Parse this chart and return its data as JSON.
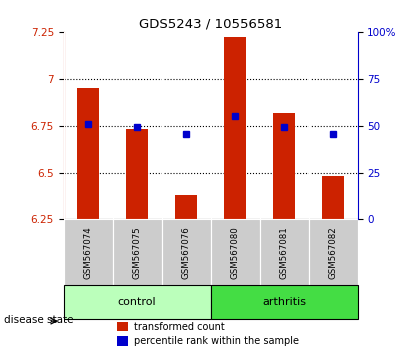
{
  "title": "GDS5243 / 10556581",
  "samples": [
    "GSM567074",
    "GSM567075",
    "GSM567076",
    "GSM567080",
    "GSM567081",
    "GSM567082"
  ],
  "bar_values": [
    6.95,
    6.73,
    6.38,
    7.22,
    6.82,
    6.48
  ],
  "bar_bottom": 6.25,
  "blue_values": [
    6.76,
    6.745,
    6.705,
    6.8,
    6.745,
    6.705
  ],
  "bar_color": "#cc2200",
  "blue_color": "#0000cc",
  "ylim_left": [
    6.25,
    7.25
  ],
  "ylim_right": [
    0,
    100
  ],
  "yticks_left": [
    6.25,
    6.5,
    6.75,
    7.0,
    7.25
  ],
  "yticks_right": [
    0,
    25,
    50,
    75,
    100
  ],
  "ytick_labels_left": [
    "6.25",
    "6.5",
    "6.75",
    "7",
    "7.25"
  ],
  "ytick_labels_right": [
    "0",
    "25",
    "50",
    "75",
    "100%"
  ],
  "hlines": [
    6.5,
    6.75,
    7.0
  ],
  "groups": [
    {
      "label": "control",
      "start": 0,
      "end": 3,
      "color": "#bbffbb"
    },
    {
      "label": "arthritis",
      "start": 3,
      "end": 6,
      "color": "#44dd44"
    }
  ],
  "group_label": "disease state",
  "legend_items": [
    {
      "label": "transformed count",
      "color": "#cc2200"
    },
    {
      "label": "percentile rank within the sample",
      "color": "#0000cc"
    }
  ],
  "bar_width": 0.45,
  "tick_color_left": "#cc2200",
  "tick_color_right": "#0000cc",
  "xticklabel_bg": "#cccccc"
}
